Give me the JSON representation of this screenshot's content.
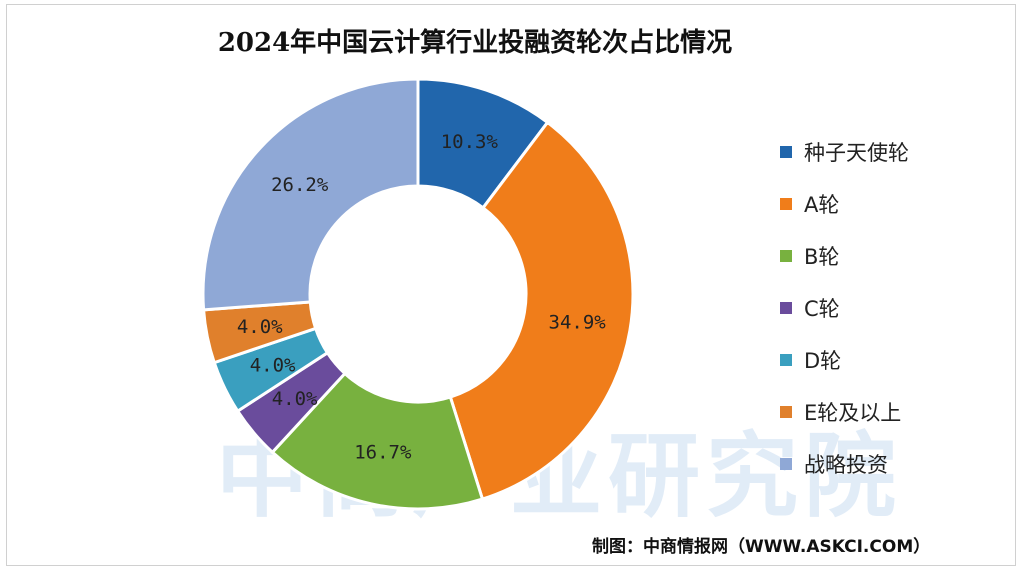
{
  "chart_data": {
    "type": "pie",
    "title": "2024年中国云计算行业投融资轮次占比情况",
    "categories": [
      "种子天使轮",
      "A轮",
      "B轮",
      "C轮",
      "D轮",
      "E轮及以上",
      "战略投资"
    ],
    "values": [
      10.3,
      34.9,
      16.7,
      4.0,
      4.0,
      4.0,
      26.2
    ],
    "labels": [
      "10.3%",
      "34.9%",
      "16.7%",
      "4.0%",
      "4.0%",
      "4.0%",
      "26.2%"
    ],
    "colors": [
      "#2166ac",
      "#f07d1a",
      "#78b13f",
      "#6a4c9c",
      "#3a9fbf",
      "#e0802c",
      "#8fa8d6"
    ],
    "legend_position": "right"
  },
  "watermark_text": "中商产业研究院",
  "source": "制图：中商情报网（WWW.ASKCI.COM）"
}
